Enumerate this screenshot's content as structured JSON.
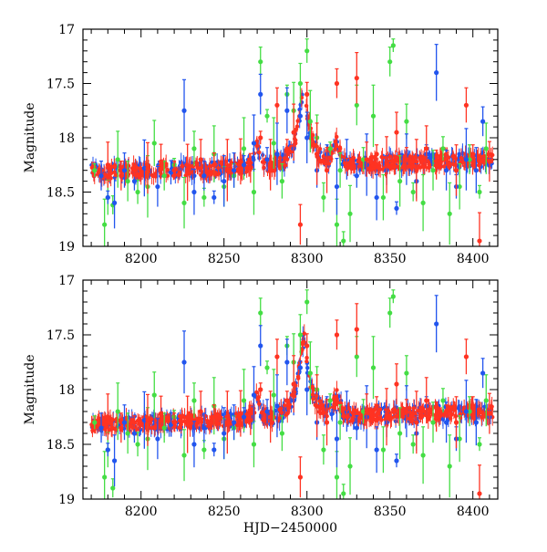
{
  "chart_data": [
    {
      "type": "scatter",
      "panel": "top",
      "xlabel": "",
      "ylabel": "Magnitude",
      "xlim": [
        8165,
        8415
      ],
      "ylim": [
        19,
        17
      ],
      "y_inverted": true,
      "xticks": [
        8200,
        8250,
        8300,
        8350,
        8400
      ],
      "yticks": [
        17,
        17.5,
        18,
        18.5,
        19
      ],
      "ytick_labels": [
        "17",
        "17.5",
        "18",
        "18.5",
        "19"
      ],
      "error_bars": true,
      "series": [
        {
          "color": "#44dd44",
          "points": [
            [
              8172,
              18.3
            ],
            [
              8178,
              18.8
            ],
            [
              8180,
              18.55
            ],
            [
              8183,
              18.62
            ],
            [
              8186,
              18.2
            ],
            [
              8192,
              18.4
            ],
            [
              8198,
              18.5
            ],
            [
              8204,
              18.45
            ],
            [
              8208,
              18.05
            ],
            [
              8214,
              18.35
            ],
            [
              8220,
              18.25
            ],
            [
              8226,
              18.6
            ],
            [
              8232,
              18.1
            ],
            [
              8238,
              18.55
            ],
            [
              8244,
              18.15
            ],
            [
              8250,
              18.45
            ],
            [
              8256,
              18.35
            ],
            [
              8262,
              18.1
            ],
            [
              8268,
              18.5
            ],
            [
              8272,
              17.3
            ],
            [
              8276,
              17.8
            ],
            [
              8280,
              18.05
            ],
            [
              8285,
              18.4
            ],
            [
              8288,
              17.6
            ],
            [
              8292,
              17.75
            ],
            [
              8296,
              17.5
            ],
            [
              8300,
              17.2
            ],
            [
              8302,
              17.85
            ],
            [
              8306,
              18.0
            ],
            [
              8310,
              18.55
            ],
            [
              8314,
              18.1
            ],
            [
              8318,
              18.8
            ],
            [
              8320,
              18.3
            ],
            [
              8322,
              18.95
            ],
            [
              8326,
              18.7
            ],
            [
              8330,
              17.7
            ],
            [
              8334,
              18.2
            ],
            [
              8340,
              17.8
            ],
            [
              8346,
              18.55
            ],
            [
              8350,
              17.3
            ],
            [
              8352,
              17.15
            ],
            [
              8356,
              18.4
            ],
            [
              8360,
              17.85
            ],
            [
              8364,
              18.5
            ],
            [
              8370,
              18.6
            ],
            [
              8376,
              18.3
            ],
            [
              8382,
              18.1
            ],
            [
              8386,
              18.7
            ],
            [
              8392,
              18.45
            ],
            [
              8398,
              18.2
            ],
            [
              8404,
              18.5
            ],
            [
              8408,
              18.1
            ]
          ]
        },
        {
          "color": "#2255ee",
          "points": [
            [
              8176,
              18.35
            ],
            [
              8180,
              18.55
            ],
            [
              8184,
              18.6
            ],
            [
              8190,
              18.3
            ],
            [
              8196,
              18.4
            ],
            [
              8202,
              18.28
            ],
            [
              8210,
              18.45
            ],
            [
              8218,
              18.32
            ],
            [
              8226,
              17.75
            ],
            [
              8232,
              18.5
            ],
            [
              8238,
              18.35
            ],
            [
              8244,
              18.55
            ],
            [
              8250,
              18.4
            ],
            [
              8256,
              18.3
            ],
            [
              8262,
              18.25
            ],
            [
              8268,
              18.05
            ],
            [
              8272,
              17.6
            ],
            [
              8276,
              18.2
            ],
            [
              8282,
              18.15
            ],
            [
              8288,
              17.75
            ],
            [
              8292,
              18.1
            ],
            [
              8296,
              17.8
            ],
            [
              8300,
              18.0
            ],
            [
              8306,
              18.3
            ],
            [
              8312,
              18.15
            ],
            [
              8318,
              18.45
            ],
            [
              8324,
              18.2
            ],
            [
              8330,
              18.35
            ],
            [
              8336,
              18.25
            ],
            [
              8342,
              18.55
            ],
            [
              8348,
              18.3
            ],
            [
              8354,
              18.65
            ],
            [
              8360,
              18.2
            ],
            [
              8366,
              18.4
            ],
            [
              8372,
              18.15
            ],
            [
              8378,
              17.4
            ],
            [
              8384,
              18.3
            ],
            [
              8390,
              18.45
            ],
            [
              8396,
              18.2
            ],
            [
              8402,
              18.3
            ],
            [
              8406,
              17.85
            ],
            [
              8410,
              18.25
            ]
          ]
        },
        {
          "color": "#ff3322",
          "points": [
            [
              8180,
              18.25
            ],
            [
              8188,
              18.35
            ],
            [
              8196,
              18.3
            ],
            [
              8204,
              18.28
            ],
            [
              8212,
              18.22
            ],
            [
              8220,
              18.3
            ],
            [
              8228,
              18.32
            ],
            [
              8236,
              18.2
            ],
            [
              8244,
              18.25
            ],
            [
              8252,
              18.3
            ],
            [
              8260,
              18.22
            ],
            [
              8266,
              18.28
            ],
            [
              8272,
              18.0
            ],
            [
              8278,
              18.25
            ],
            [
              8282,
              17.7
            ],
            [
              8288,
              18.1
            ],
            [
              8292,
              17.95
            ],
            [
              8296,
              18.8
            ],
            [
              8300,
              17.6
            ],
            [
              8306,
              18.15
            ],
            [
              8312,
              18.3
            ],
            [
              8318,
              17.5
            ],
            [
              8324,
              18.25
            ],
            [
              8330,
              17.45
            ],
            [
              8336,
              18.2
            ],
            [
              8342,
              18.15
            ],
            [
              8348,
              18.25
            ],
            [
              8354,
              17.95
            ],
            [
              8360,
              18.2
            ],
            [
              8366,
              18.3
            ],
            [
              8372,
              18.1
            ],
            [
              8378,
              18.25
            ],
            [
              8384,
              18.2
            ],
            [
              8390,
              18.3
            ],
            [
              8396,
              17.7
            ],
            [
              8400,
              18.15
            ],
            [
              8404,
              18.95
            ],
            [
              8410,
              18.22
            ]
          ]
        }
      ]
    },
    {
      "type": "scatter",
      "panel": "bottom",
      "xlabel": "HJD−2450000",
      "ylabel": "Magnitude",
      "xlim": [
        8165,
        8415
      ],
      "ylim": [
        19,
        17
      ],
      "y_inverted": true,
      "xticks": [
        8200,
        8250,
        8300,
        8350,
        8400
      ],
      "yticks": [
        17,
        17.5,
        18,
        18.5,
        19
      ],
      "ytick_labels": [
        "17",
        "17.5",
        "18",
        "18.5",
        "19"
      ],
      "error_bars": true,
      "series": [
        {
          "color": "#44dd44",
          "points": [
            [
              8172,
              18.3
            ],
            [
              8178,
              18.8
            ],
            [
              8180,
              18.55
            ],
            [
              8183,
              18.9
            ],
            [
              8186,
              18.2
            ],
            [
              8192,
              18.4
            ],
            [
              8198,
              18.5
            ],
            [
              8204,
              18.45
            ],
            [
              8208,
              18.05
            ],
            [
              8214,
              18.35
            ],
            [
              8220,
              18.25
            ],
            [
              8226,
              18.6
            ],
            [
              8232,
              18.1
            ],
            [
              8238,
              18.55
            ],
            [
              8244,
              18.15
            ],
            [
              8250,
              18.45
            ],
            [
              8256,
              18.35
            ],
            [
              8262,
              18.1
            ],
            [
              8268,
              18.5
            ],
            [
              8272,
              17.3
            ],
            [
              8276,
              17.8
            ],
            [
              8280,
              18.05
            ],
            [
              8285,
              18.4
            ],
            [
              8288,
              17.6
            ],
            [
              8292,
              17.75
            ],
            [
              8296,
              17.5
            ],
            [
              8300,
              17.2
            ],
            [
              8302,
              17.85
            ],
            [
              8306,
              18.0
            ],
            [
              8310,
              18.55
            ],
            [
              8314,
              18.1
            ],
            [
              8318,
              18.8
            ],
            [
              8320,
              18.3
            ],
            [
              8322,
              18.95
            ],
            [
              8326,
              18.7
            ],
            [
              8330,
              17.7
            ],
            [
              8334,
              18.2
            ],
            [
              8340,
              17.8
            ],
            [
              8346,
              18.55
            ],
            [
              8350,
              17.3
            ],
            [
              8352,
              17.15
            ],
            [
              8356,
              18.4
            ],
            [
              8360,
              17.85
            ],
            [
              8364,
              18.5
            ],
            [
              8370,
              18.6
            ],
            [
              8376,
              18.3
            ],
            [
              8382,
              18.1
            ],
            [
              8386,
              18.7
            ],
            [
              8392,
              18.45
            ],
            [
              8398,
              18.2
            ],
            [
              8404,
              18.5
            ],
            [
              8408,
              18.1
            ]
          ]
        },
        {
          "color": "#2255ee",
          "points": [
            [
              8176,
              18.35
            ],
            [
              8180,
              18.55
            ],
            [
              8184,
              18.65
            ],
            [
              8190,
              18.3
            ],
            [
              8196,
              18.4
            ],
            [
              8202,
              18.28
            ],
            [
              8210,
              18.45
            ],
            [
              8218,
              18.32
            ],
            [
              8226,
              17.75
            ],
            [
              8232,
              18.5
            ],
            [
              8238,
              18.35
            ],
            [
              8244,
              18.55
            ],
            [
              8250,
              18.4
            ],
            [
              8256,
              18.3
            ],
            [
              8262,
              18.25
            ],
            [
              8268,
              18.05
            ],
            [
              8272,
              17.6
            ],
            [
              8276,
              18.2
            ],
            [
              8282,
              18.15
            ],
            [
              8288,
              17.75
            ],
            [
              8292,
              18.1
            ],
            [
              8296,
              17.8
            ],
            [
              8300,
              18.0
            ],
            [
              8306,
              18.3
            ],
            [
              8312,
              18.15
            ],
            [
              8318,
              18.45
            ],
            [
              8324,
              18.2
            ],
            [
              8330,
              18.35
            ],
            [
              8336,
              18.25
            ],
            [
              8342,
              18.55
            ],
            [
              8348,
              18.3
            ],
            [
              8354,
              18.65
            ],
            [
              8360,
              18.2
            ],
            [
              8366,
              18.4
            ],
            [
              8372,
              18.15
            ],
            [
              8378,
              17.4
            ],
            [
              8384,
              18.3
            ],
            [
              8390,
              18.45
            ],
            [
              8396,
              18.2
            ],
            [
              8402,
              18.3
            ],
            [
              8406,
              17.85
            ],
            [
              8410,
              18.25
            ]
          ]
        },
        {
          "color": "#ff3322",
          "points": [
            [
              8180,
              18.25
            ],
            [
              8188,
              18.35
            ],
            [
              8196,
              18.3
            ],
            [
              8204,
              18.28
            ],
            [
              8212,
              18.22
            ],
            [
              8220,
              18.3
            ],
            [
              8228,
              18.32
            ],
            [
              8236,
              18.2
            ],
            [
              8244,
              18.25
            ],
            [
              8252,
              18.3
            ],
            [
              8260,
              18.22
            ],
            [
              8266,
              18.28
            ],
            [
              8272,
              18.0
            ],
            [
              8278,
              18.25
            ],
            [
              8282,
              17.7
            ],
            [
              8288,
              18.1
            ],
            [
              8292,
              17.95
            ],
            [
              8296,
              18.8
            ],
            [
              8300,
              17.6
            ],
            [
              8306,
              18.15
            ],
            [
              8312,
              18.3
            ],
            [
              8318,
              17.5
            ],
            [
              8324,
              18.25
            ],
            [
              8330,
              17.45
            ],
            [
              8336,
              18.2
            ],
            [
              8342,
              18.15
            ],
            [
              8348,
              18.25
            ],
            [
              8354,
              17.95
            ],
            [
              8360,
              18.2
            ],
            [
              8366,
              18.3
            ],
            [
              8372,
              18.1
            ],
            [
              8378,
              18.25
            ],
            [
              8384,
              18.2
            ],
            [
              8390,
              18.3
            ],
            [
              8396,
              17.7
            ],
            [
              8400,
              18.15
            ],
            [
              8404,
              18.95
            ],
            [
              8410,
              18.22
            ]
          ]
        }
      ]
    }
  ]
}
